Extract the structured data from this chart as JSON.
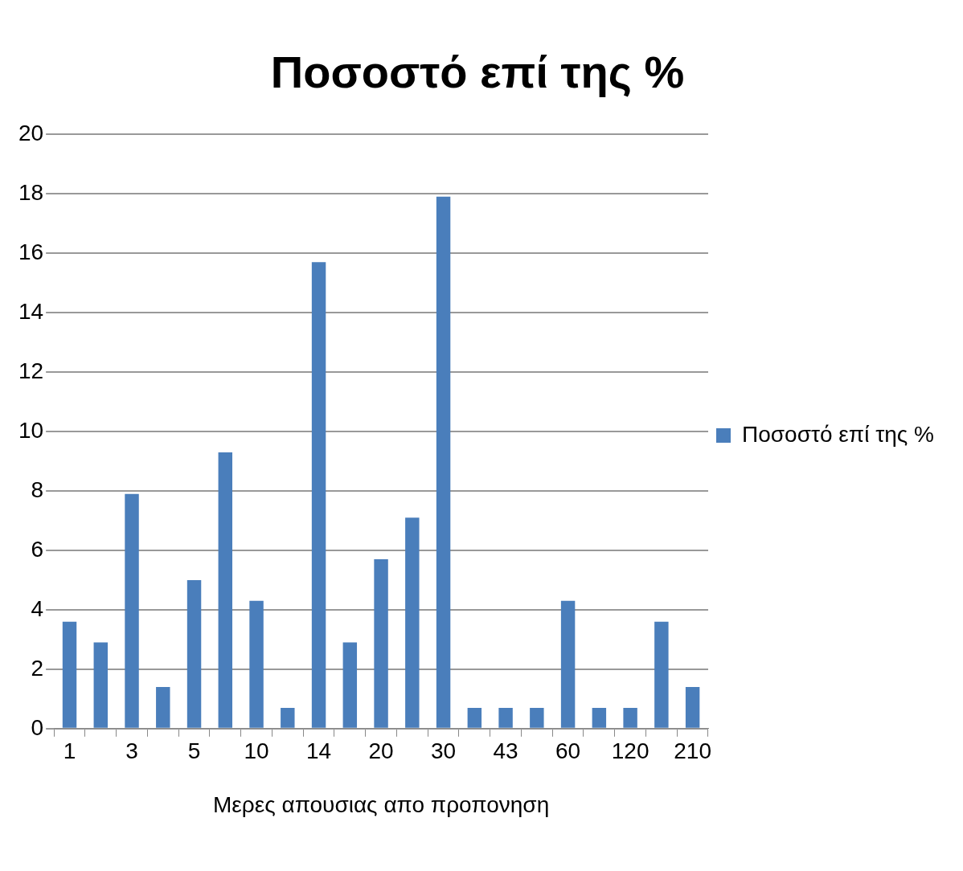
{
  "chart_data": {
    "type": "bar",
    "title": "Ποσοστό επί της %",
    "xlabel": "Μερες απουσιας απο προπονηση",
    "categories": [
      "1",
      null,
      "3",
      null,
      "5",
      null,
      "10",
      null,
      "14",
      null,
      "20",
      null,
      "30",
      null,
      "43",
      null,
      "60",
      null,
      "120",
      null,
      "210"
    ],
    "series": [
      {
        "name": "Ποσοστό επί της %",
        "color": "#4a7ebb",
        "values": [
          3.6,
          2.9,
          7.9,
          1.4,
          5.0,
          9.3,
          4.3,
          0.7,
          15.7,
          2.9,
          5.7,
          7.1,
          17.9,
          0.7,
          0.7,
          0.7,
          4.3,
          0.7,
          0.7,
          3.6,
          1.4
        ]
      }
    ],
    "ylim": [
      0,
      20
    ],
    "yticks": [
      0,
      2,
      4,
      6,
      8,
      10,
      12,
      14,
      16,
      18,
      20
    ],
    "grid": "y",
    "legend": "right"
  }
}
